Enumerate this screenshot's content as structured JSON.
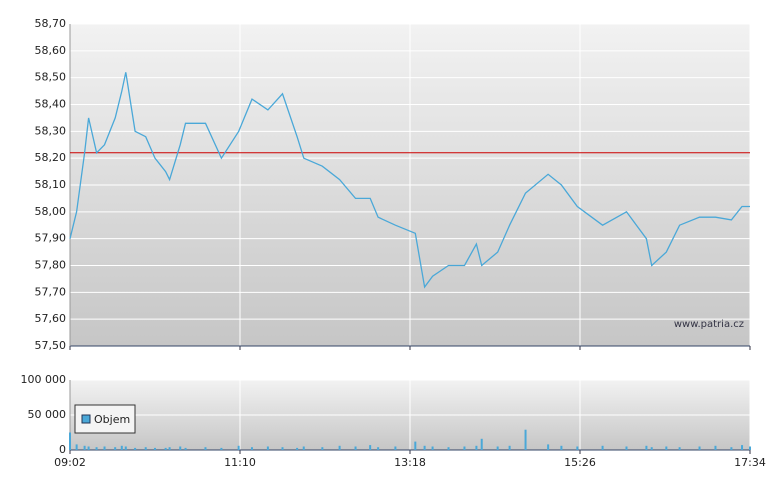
{
  "chart_data": [
    {
      "type": "line",
      "x": [
        "09:02",
        "09:07",
        "09:13",
        "09:16",
        "09:22",
        "09:28",
        "09:36",
        "09:41",
        "09:44",
        "09:51",
        "09:59",
        "10:06",
        "10:14",
        "10:17",
        "10:25",
        "10:29",
        "10:44",
        "10:56",
        "11:09",
        "11:19",
        "11:31",
        "11:42",
        "11:53",
        "11:58",
        "12:12",
        "12:25",
        "12:37",
        "12:48",
        "12:54",
        "13:07",
        "13:22",
        "13:29",
        "13:35",
        "13:47",
        "13:59",
        "14:08",
        "14:12",
        "14:24",
        "14:33",
        "14:45",
        "15:02",
        "15:12",
        "15:24",
        "15:43",
        "16:01",
        "16:16",
        "16:20",
        "16:31",
        "16:41",
        "16:56",
        "17:08",
        "17:20",
        "17:28",
        "17:34"
      ],
      "series": [
        {
          "name": "Cena",
          "color": "#4aa8d8",
          "values": [
            57.9,
            58.0,
            58.22,
            58.35,
            58.22,
            58.25,
            58.35,
            58.45,
            58.52,
            58.3,
            58.28,
            58.2,
            58.15,
            58.12,
            58.25,
            58.33,
            58.33,
            58.2,
            58.3,
            58.42,
            58.38,
            58.44,
            58.28,
            58.2,
            58.17,
            58.12,
            58.05,
            58.05,
            57.98,
            57.95,
            57.92,
            57.72,
            57.76,
            57.8,
            57.8,
            57.88,
            57.8,
            57.85,
            57.95,
            58.07,
            58.14,
            58.1,
            58.02,
            57.95,
            58.0,
            57.9,
            57.8,
            57.85,
            57.95,
            57.98,
            57.98,
            57.97,
            58.02,
            58.02
          ]
        }
      ],
      "hline": {
        "value": 58.22,
        "color": "#cc0000"
      },
      "xlim": [
        "09:02",
        "17:34"
      ],
      "xticks": [
        "09:02",
        "11:10",
        "13:18",
        "15:26",
        "17:34"
      ],
      "ylim": [
        57.5,
        58.7
      ],
      "yticks": [
        {
          "value": 57.5,
          "label": "57,50"
        },
        {
          "value": 57.6,
          "label": "57,60"
        },
        {
          "value": 57.7,
          "label": "57,70"
        },
        {
          "value": 57.8,
          "label": "57,80"
        },
        {
          "value": 57.9,
          "label": "57,90"
        },
        {
          "value": 58.0,
          "label": "58,00"
        },
        {
          "value": 58.1,
          "label": "58,10"
        },
        {
          "value": 58.2,
          "label": "58,20"
        },
        {
          "value": 58.3,
          "label": "58,30"
        },
        {
          "value": 58.4,
          "label": "58,40"
        },
        {
          "value": 58.5,
          "label": "58,50"
        },
        {
          "value": 58.6,
          "label": "58,60"
        },
        {
          "value": 58.7,
          "label": "58,70"
        }
      ],
      "grid": true,
      "annotation": "www.patria.cz"
    },
    {
      "type": "bar",
      "x": [
        "09:02",
        "09:07",
        "09:13",
        "09:16",
        "09:22",
        "09:28",
        "09:36",
        "09:41",
        "09:44",
        "09:51",
        "09:59",
        "10:06",
        "10:14",
        "10:17",
        "10:25",
        "10:29",
        "10:44",
        "10:56",
        "11:09",
        "11:19",
        "11:31",
        "11:42",
        "11:53",
        "11:58",
        "12:12",
        "12:25",
        "12:37",
        "12:48",
        "12:54",
        "13:07",
        "13:22",
        "13:29",
        "13:35",
        "13:47",
        "13:59",
        "14:08",
        "14:12",
        "14:24",
        "14:33",
        "14:45",
        "15:02",
        "15:12",
        "15:24",
        "15:43",
        "16:01",
        "16:16",
        "16:20",
        "16:31",
        "16:41",
        "16:56",
        "17:08",
        "17:20",
        "17:28",
        "17:34"
      ],
      "series": [
        {
          "name": "Objem",
          "color": "#4aa8d8",
          "values": [
            25000,
            8000,
            6000,
            5000,
            4000,
            5000,
            4000,
            6000,
            5000,
            3000,
            4000,
            3000,
            3000,
            4000,
            5000,
            3000,
            4000,
            3000,
            6000,
            4000,
            5000,
            4000,
            3000,
            5000,
            4000,
            6000,
            5000,
            7000,
            4000,
            5000,
            12000,
            6000,
            5000,
            4000,
            5000,
            6000,
            16000,
            5000,
            6000,
            29000,
            8000,
            6000,
            5000,
            6000,
            5000,
            6000,
            4000,
            5000,
            4000,
            5000,
            6000,
            4000,
            7000,
            5000
          ]
        }
      ],
      "xlim": [
        "09:02",
        "17:34"
      ],
      "xticks": [
        "09:02",
        "11:10",
        "13:18",
        "15:26",
        "17:34"
      ],
      "ylim": [
        0,
        100000
      ],
      "yticks": [
        0,
        {
          "value": 50000,
          "label": "50 000"
        },
        {
          "value": 100000,
          "label": "100 000"
        }
      ],
      "grid": true,
      "legend": "upper left"
    }
  ]
}
